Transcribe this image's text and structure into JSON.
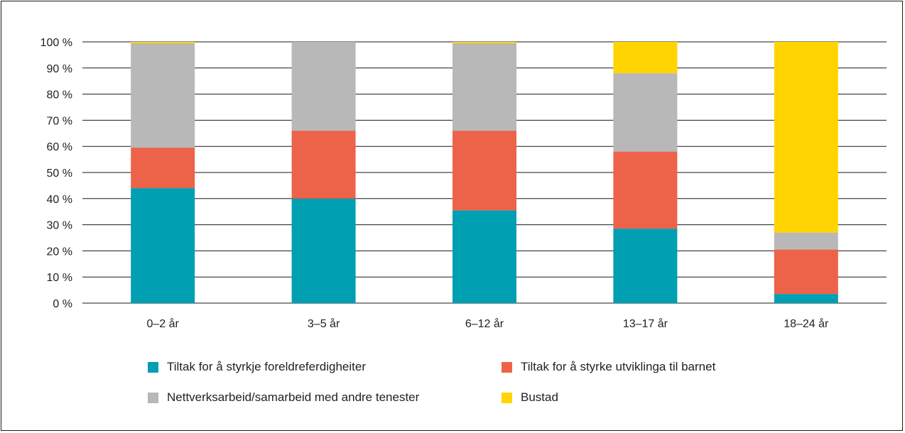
{
  "chart_data": {
    "type": "bar",
    "stacked": true,
    "categories": [
      "0–2 år",
      "3–5 år",
      "6–12 år",
      "13–17 år",
      "18–24 år"
    ],
    "series": [
      {
        "name": "Tiltak for å styrkje foreldreferdigheiter",
        "color": "#009fb2",
        "values": [
          44,
          40,
          35.5,
          28.5,
          3.5
        ]
      },
      {
        "name": "Tiltak for å styrke utviklinga til barnet",
        "color": "#ec634a",
        "values": [
          15.5,
          26,
          30.5,
          29.5,
          17
        ]
      },
      {
        "name": "Nettverksarbeid/samarbeid med andre tenester",
        "color": "#b8b8b8",
        "values": [
          40,
          34,
          33.5,
          30,
          6.5
        ]
      },
      {
        "name": "Bustad",
        "color": "#ffd400",
        "values": [
          0.5,
          0,
          0.5,
          12,
          73
        ]
      }
    ],
    "y_ticks": [
      "0 %",
      "10 %",
      "20 %",
      "30 %",
      "40 %",
      "50 %",
      "60 %",
      "70 %",
      "80 %",
      "90 %",
      "100 %"
    ],
    "ylim": [
      0,
      100
    ],
    "grid": true,
    "legend_position": "bottom",
    "title": "",
    "xlabel": "",
    "ylabel": ""
  }
}
